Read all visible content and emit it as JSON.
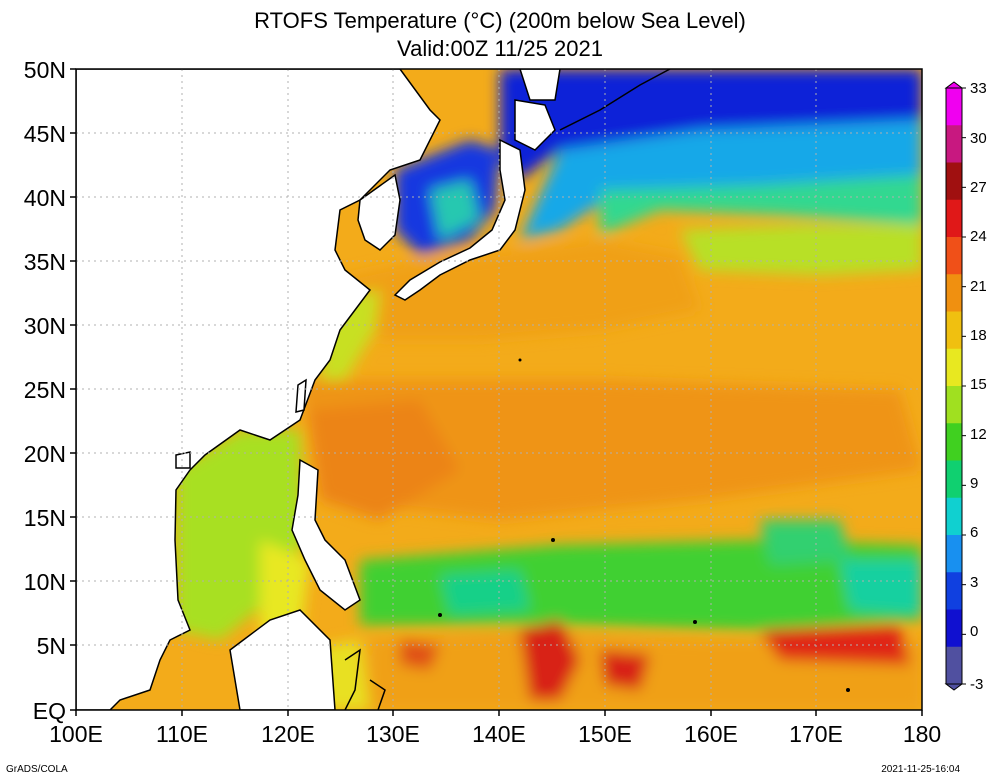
{
  "title": "RTOFS Temperature (°C) (200m below Sea Level)",
  "subtitle": "Valid:00Z 11/25 2021",
  "footer_left": "GrADS/COLA",
  "footer_right": "2021-11-25-16:04",
  "axes": {
    "lat_labels": [
      "50N",
      "45N",
      "40N",
      "35N",
      "30N",
      "25N",
      "20N",
      "15N",
      "10N",
      "5N",
      "EQ"
    ],
    "lon_labels": [
      "100E",
      "110E",
      "120E",
      "130E",
      "140E",
      "150E",
      "160E",
      "170E",
      "180"
    ]
  },
  "colorbar": {
    "labels": [
      "33",
      "30",
      "27",
      "24",
      "21",
      "18",
      "15",
      "12",
      "9",
      "6",
      "3",
      "0",
      "-3"
    ],
    "colors": [
      "#f000f0",
      "#c81880",
      "#a01010",
      "#e01818",
      "#f05018",
      "#f09010",
      "#f0c010",
      "#e8e820",
      "#a0e020",
      "#40d020",
      "#10d070",
      "#10d0d0",
      "#1890f0",
      "#1040e0",
      "#1010d0",
      "#5050a0"
    ]
  },
  "colors": {
    "land": "#ffffff",
    "coast": "#000000",
    "grid": "#b0b0b0",
    "warm_ocean": "#f2a818",
    "cool_ocean": "#1838e0"
  }
}
